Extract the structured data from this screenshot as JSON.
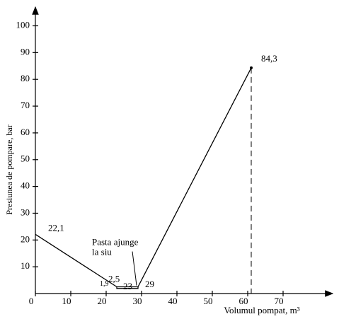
{
  "chart_data": {
    "type": "line",
    "y_label": "Presiunea de pompare, bar",
    "x_label": "Volumul pompat, m³",
    "xlim": [
      0,
      84
    ],
    "ylim": [
      0,
      107
    ],
    "xticks": [
      0,
      10,
      20,
      30,
      40,
      50,
      60,
      70
    ],
    "yticks": [
      10,
      20,
      30,
      40,
      50,
      60,
      70,
      80,
      90,
      100
    ],
    "series": [
      {
        "color": "#000000",
        "x": [
          0,
          23,
          29,
          61
        ],
        "values": [
          22.1,
          2.5,
          2.5,
          84.3
        ]
      },
      {
        "color": "#000000",
        "x": [
          23,
          23,
          29,
          29
        ],
        "values": [
          2.5,
          1.9,
          1.9,
          2.5
        ]
      }
    ],
    "annotations": [
      {
        "text": "22,1",
        "x": 0,
        "y": 22.1
      },
      {
        "text": "2,5",
        "x": 23,
        "y": 2.5
      },
      {
        "text": "1,9",
        "x": 23,
        "y": 1.9
      },
      {
        "text": "23",
        "x": 23,
        "y": 0
      },
      {
        "text": "29",
        "x": 29,
        "y": 0
      },
      {
        "text": "84,3",
        "x": 61,
        "y": 84.3
      }
    ],
    "note": [
      "Pasta ajunge",
      "la siu"
    ]
  }
}
